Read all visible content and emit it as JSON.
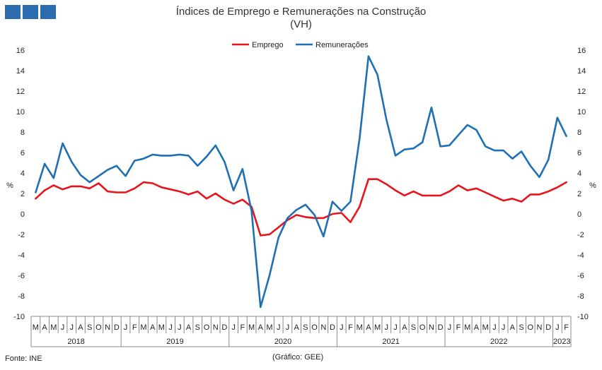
{
  "logo": {
    "squares": 3,
    "color": "#2b6cb0"
  },
  "chart_data": {
    "type": "line",
    "title": "Índices de Emprego e Remunerações na Construção",
    "subtitle": "(VH)",
    "ylabel_left": "%",
    "ylabel_right": "%",
    "ylim": [
      -10,
      16
    ],
    "yticks": [
      -10,
      -8,
      -6,
      -4,
      -2,
      0,
      2,
      4,
      6,
      8,
      10,
      12,
      14,
      16
    ],
    "grid": false,
    "legend_position": "top-center",
    "month_labels": [
      "M",
      "A",
      "M",
      "J",
      "J",
      "A",
      "S",
      "O",
      "N",
      "D",
      "J",
      "F",
      "M",
      "A",
      "M",
      "J",
      "J",
      "A",
      "S",
      "O",
      "N",
      "D",
      "J",
      "F",
      "M",
      "A",
      "M",
      "J",
      "J",
      "A",
      "S",
      "O",
      "N",
      "D",
      "J",
      "F",
      "M",
      "A",
      "M",
      "J",
      "J",
      "A",
      "S",
      "O",
      "N",
      "D",
      "J",
      "F",
      "M",
      "A",
      "M",
      "J",
      "J",
      "A",
      "S",
      "O",
      "N",
      "D",
      "J",
      "F"
    ],
    "year_labels": [
      "2018",
      "2019",
      "2020",
      "2021",
      "2022",
      "2023"
    ],
    "series": [
      {
        "name": "Emprego",
        "color": "#e8141c",
        "values": [
          1.5,
          2.3,
          2.8,
          2.4,
          2.7,
          2.7,
          2.5,
          3.0,
          2.2,
          2.1,
          2.1,
          2.5,
          3.1,
          3.0,
          2.6,
          2.4,
          2.2,
          1.9,
          2.2,
          1.5,
          2.0,
          1.4,
          1.0,
          1.4,
          0.7,
          -2.1,
          -2.0,
          -1.3,
          -0.6,
          -0.1,
          -0.3,
          -0.4,
          -0.4,
          0.0,
          0.1,
          -0.8,
          0.7,
          3.4,
          3.4,
          2.9,
          2.3,
          1.8,
          2.2,
          1.8,
          1.8,
          1.8,
          2.2,
          2.8,
          2.3,
          2.5,
          2.1,
          1.7,
          1.3,
          1.5,
          1.2,
          1.9,
          1.9,
          2.2,
          2.6,
          3.1
        ]
      },
      {
        "name": "Remunerações",
        "color": "#1f6fb4",
        "values": [
          2.1,
          4.9,
          3.5,
          6.9,
          5.1,
          3.8,
          3.1,
          3.7,
          4.3,
          4.7,
          3.7,
          5.2,
          5.4,
          5.8,
          5.7,
          5.7,
          5.8,
          5.7,
          4.7,
          5.6,
          6.7,
          5.1,
          2.3,
          4.4,
          0.3,
          -9.1,
          -6.0,
          -2.3,
          -0.4,
          0.4,
          0.9,
          -0.1,
          -2.2,
          1.2,
          0.3,
          1.2,
          7.3,
          15.4,
          13.6,
          9.2,
          5.7,
          6.3,
          6.4,
          7.0,
          10.4,
          6.6,
          6.7,
          7.7,
          8.7,
          8.2,
          6.6,
          6.2,
          6.2,
          5.4,
          6.1,
          4.7,
          3.6,
          5.3,
          9.4,
          7.6
        ]
      }
    ]
  },
  "footer": {
    "source": "Fonte: INE",
    "credit": "(Gráfico: GEE)"
  }
}
